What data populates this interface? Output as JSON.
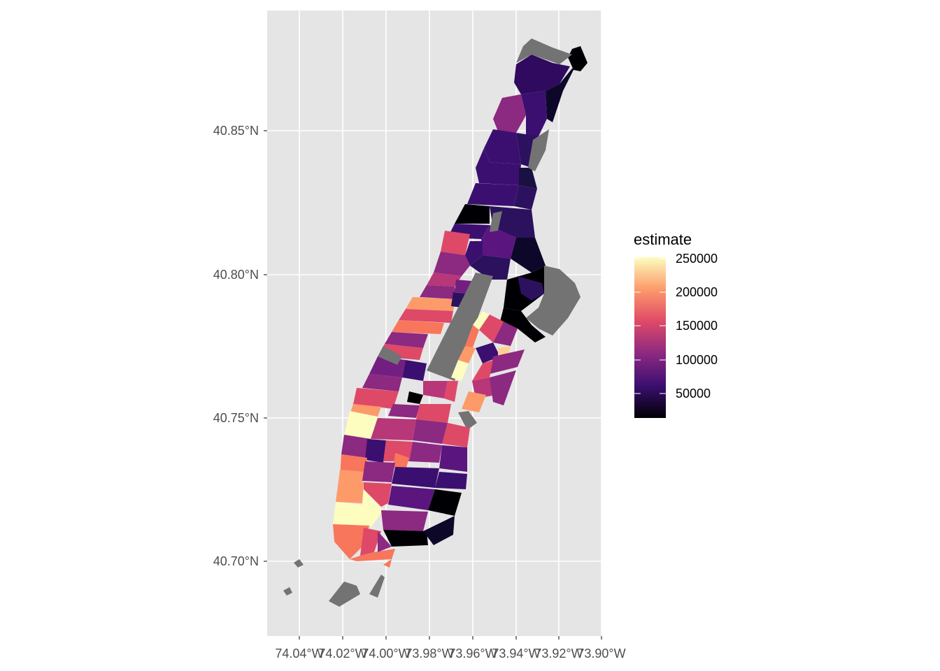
{
  "map": {
    "x_ticks": [
      "74.04°W",
      "74.02°W",
      "74.00°W",
      "73.98°W",
      "73.96°W",
      "73.94°W",
      "73.92°W",
      "73.90°W"
    ],
    "y_ticks": [
      "40.85°N",
      "40.80°N",
      "40.75°N",
      "40.70°N"
    ],
    "panel_background": "#e5e5e5",
    "grid_color": "#ffffff",
    "na_color": "#737373"
  },
  "legend": {
    "title": "estimate",
    "labels": [
      "250000",
      "200000",
      "150000",
      "100000",
      "50000"
    ],
    "palette": "magma",
    "colors": [
      "#fcfdbf",
      "#fd9a6a",
      "#de4968",
      "#8c2981",
      "#3b0f70",
      "#000004"
    ]
  }
}
